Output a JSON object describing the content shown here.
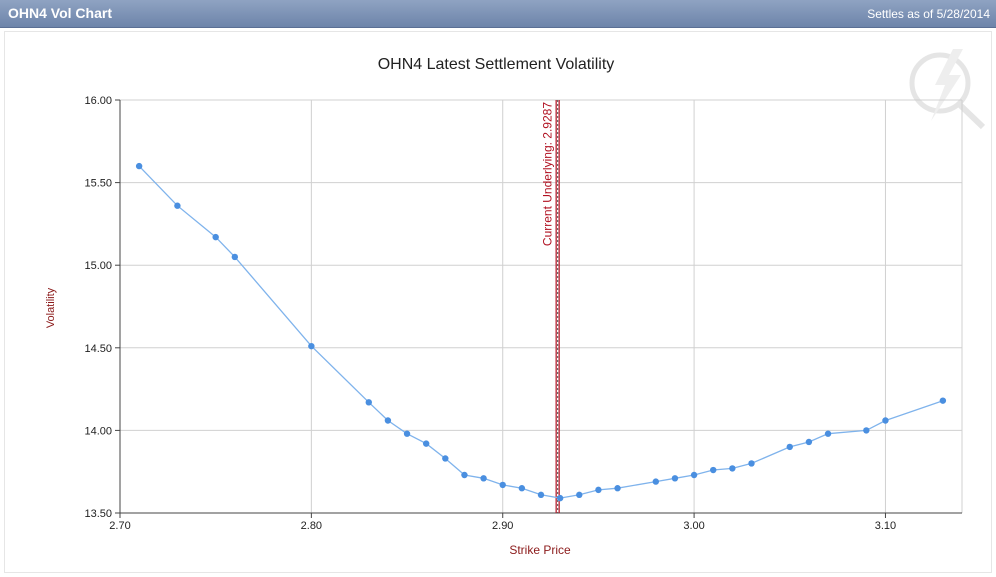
{
  "header": {
    "title": "OHN4 Vol Chart",
    "settles": "Settles as of 5/28/2014"
  },
  "colors": {
    "series": "#4a8fe0",
    "line": "#7fb3ec",
    "grid": "#d0d0d0",
    "underlying": "#b01020",
    "axis_title": "#8b1a1a"
  },
  "watermark": {
    "icon": "lightning-logo-icon"
  },
  "chart_data": {
    "type": "line",
    "title": "OHN4 Latest Settlement Volatility",
    "xlabel": "Strike Price",
    "ylabel": "Volatility",
    "xlim": [
      2.7,
      3.14
    ],
    "ylim": [
      13.5,
      16.0
    ],
    "x_ticks": [
      "2.70",
      "2.80",
      "2.90",
      "3.00",
      "3.10"
    ],
    "y_ticks": [
      "16.00",
      "15.50",
      "15.00",
      "14.50",
      "14.00",
      "13.50"
    ],
    "x_tick_values": [
      2.7,
      2.8,
      2.9,
      3.0,
      3.1
    ],
    "y_tick_values": [
      16.0,
      15.5,
      15.0,
      14.5,
      14.0,
      13.5
    ],
    "grid": true,
    "underlying": {
      "label": "Current Underlying: 2.9287",
      "value": 2.9287
    },
    "series": [
      {
        "x": [
          2.71,
          2.73,
          2.75,
          2.76,
          2.8,
          2.83,
          2.84,
          2.85,
          2.86,
          2.87,
          2.88,
          2.89,
          2.9,
          2.91,
          2.92,
          2.93,
          2.94,
          2.95,
          2.96,
          2.98,
          2.99,
          3.0,
          3.01,
          3.02,
          3.03,
          3.05,
          3.06,
          3.07,
          3.09,
          3.1,
          3.13
        ],
        "y": [
          15.6,
          15.36,
          15.17,
          15.05,
          14.51,
          14.17,
          14.06,
          13.98,
          13.92,
          13.83,
          13.73,
          13.71,
          13.67,
          13.65,
          13.61,
          13.59,
          13.61,
          13.64,
          13.65,
          13.69,
          13.71,
          13.73,
          13.76,
          13.77,
          13.8,
          13.9,
          13.93,
          13.98,
          14.0,
          14.06,
          14.18
        ]
      }
    ]
  }
}
